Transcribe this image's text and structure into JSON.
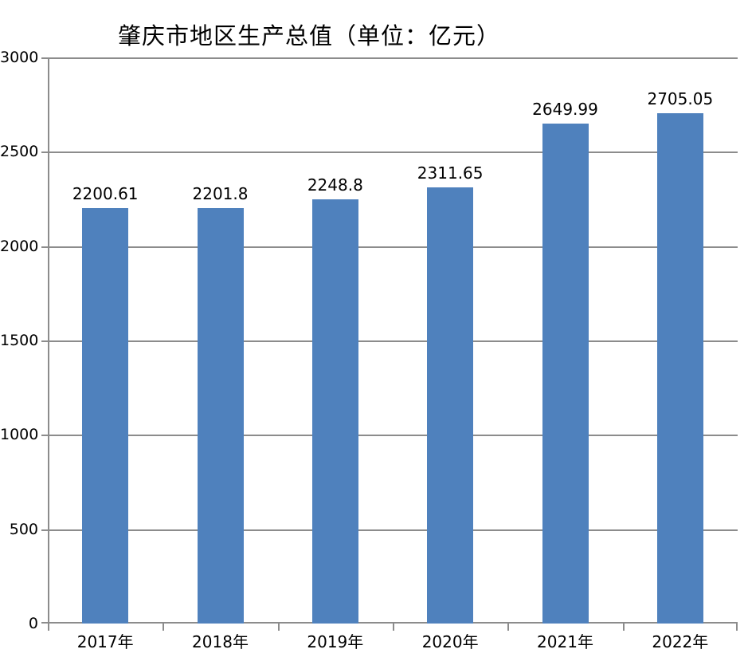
{
  "chart_data": {
    "type": "bar",
    "title": "肇庆市地区生产总值（单位：亿元）",
    "categories": [
      "2017年",
      "2018年",
      "2019年",
      "2020年",
      "2021年",
      "2022年"
    ],
    "values": [
      2200.61,
      2201.8,
      2248.8,
      2311.65,
      2649.99,
      2705.05
    ],
    "value_labels": [
      "2200.61",
      "2201.8",
      "2248.8",
      "2311.65",
      "2649.99",
      "2705.05"
    ],
    "xlabel": "",
    "ylabel": "",
    "ylim": [
      0,
      3000
    ],
    "yticks": [
      0,
      500,
      1000,
      1500,
      2000,
      2500,
      3000
    ],
    "grid": "horizontal",
    "legend": "none",
    "colors": {
      "bar": "#4F81BD",
      "grid": "#8C8C8C",
      "axis": "#8C8C8C",
      "text": "#000000",
      "background": "#FFFFFF"
    }
  }
}
